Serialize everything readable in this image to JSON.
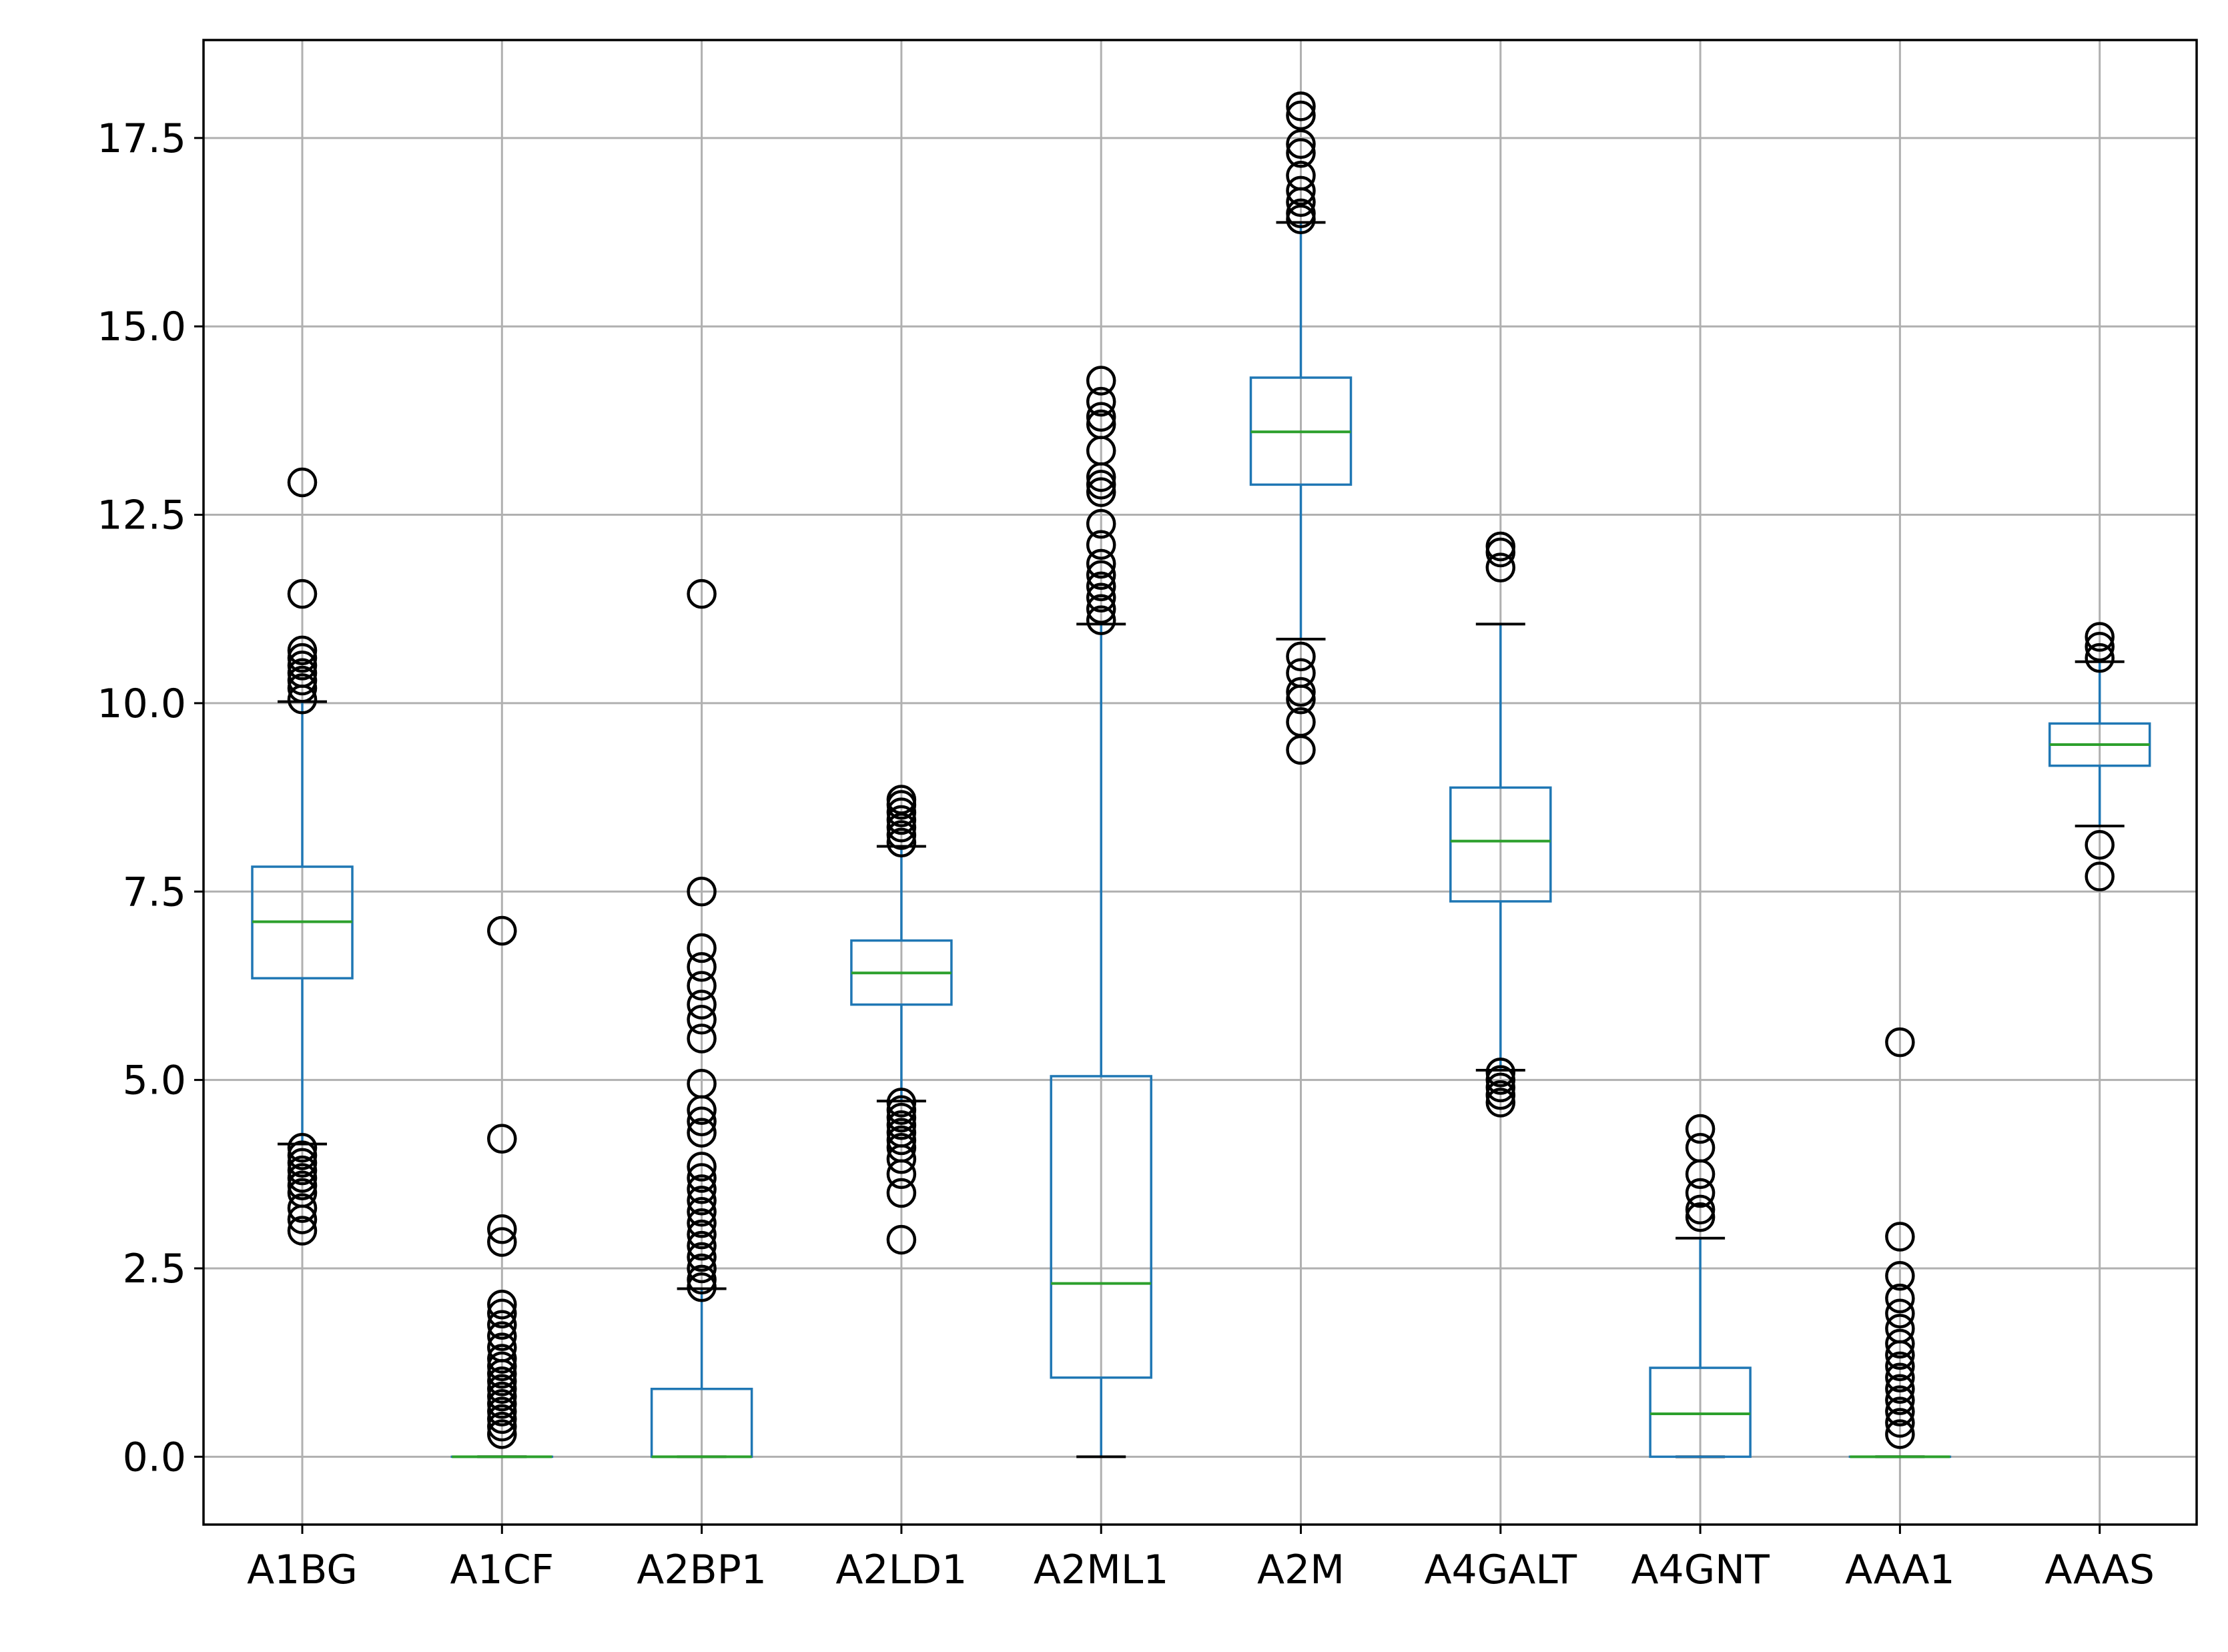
{
  "chart_data": {
    "type": "box",
    "title": "",
    "xlabel": "",
    "ylabel": "",
    "ylim": [
      -0.9,
      18.8
    ],
    "yticks": [
      0.0,
      2.5,
      5.0,
      7.5,
      10.0,
      12.5,
      15.0,
      17.5
    ],
    "ytick_labels": [
      "0.0",
      "2.5",
      "5.0",
      "7.5",
      "10.0",
      "12.5",
      "15.0",
      "17.5"
    ],
    "grid": true,
    "colors": {
      "box": "#1f77b4",
      "median": "#2ca02c",
      "cap": "#000000",
      "flier": "#000000",
      "grid": "#b0b0b0"
    },
    "categories": [
      "A1BG",
      "A1CF",
      "A2BP1",
      "A2LD1",
      "A2ML1",
      "A2M",
      "A4GALT",
      "A4GNT",
      "AAA1",
      "AAAS"
    ],
    "series": [
      {
        "label": "A1BG",
        "q1": 6.35,
        "median": 7.1,
        "q3": 7.83,
        "whislo": 4.15,
        "whishi": 10.02,
        "fliers": [
          12.93,
          11.45,
          10.7,
          10.6,
          10.5,
          10.4,
          10.3,
          10.2,
          10.05,
          4.1,
          4.0,
          3.9,
          3.8,
          3.7,
          3.6,
          3.5,
          3.3,
          3.15,
          3.0
        ]
      },
      {
        "label": "A1CF",
        "q1": 0.0,
        "median": 0.0,
        "q3": 0.0,
        "whislo": 0.0,
        "whishi": 0.0,
        "fliers": [
          6.98,
          4.22,
          3.02,
          2.85,
          2.02,
          1.9,
          1.75,
          1.6,
          1.45,
          1.3,
          1.2,
          1.1,
          1.0,
          0.9,
          0.8,
          0.7,
          0.6,
          0.5,
          0.4,
          0.3
        ]
      },
      {
        "label": "A2BP1",
        "q1": 0.0,
        "median": 0.0,
        "q3": 0.9,
        "whislo": 0.0,
        "whishi": 2.23,
        "fliers": [
          11.45,
          7.5,
          6.75,
          6.5,
          6.25,
          6.0,
          5.8,
          5.55,
          4.95,
          4.6,
          4.45,
          4.3,
          3.85,
          3.7,
          3.55,
          3.4,
          3.25,
          3.1,
          2.95,
          2.8,
          2.65,
          2.5,
          2.35,
          2.25
        ]
      },
      {
        "label": "A2LD1",
        "q1": 6.0,
        "median": 6.42,
        "q3": 6.85,
        "whislo": 4.72,
        "whishi": 8.1,
        "fliers": [
          8.72,
          8.65,
          8.55,
          8.45,
          8.35,
          8.25,
          8.15,
          4.7,
          4.6,
          4.5,
          4.4,
          4.3,
          4.2,
          4.1,
          3.95,
          3.75,
          3.5,
          2.88
        ]
      },
      {
        "label": "A2ML1",
        "q1": 1.05,
        "median": 2.3,
        "q3": 5.05,
        "whislo": 0.0,
        "whishi": 11.05,
        "fliers": [
          14.28,
          14.0,
          13.8,
          13.7,
          13.35,
          13.0,
          12.9,
          12.8,
          12.38,
          12.1,
          11.85,
          11.7,
          11.55,
          11.4,
          11.25,
          11.1
        ]
      },
      {
        "label": "A2M",
        "q1": 12.9,
        "median": 13.6,
        "q3": 14.32,
        "whislo": 10.85,
        "whishi": 16.38,
        "fliers": [
          17.92,
          17.8,
          17.42,
          17.3,
          17.0,
          16.8,
          16.65,
          16.5,
          16.42,
          10.62,
          10.4,
          10.15,
          10.05,
          9.75,
          9.38
        ]
      },
      {
        "label": "A4GALT",
        "q1": 7.37,
        "median": 8.17,
        "q3": 8.88,
        "whislo": 5.13,
        "whishi": 11.05,
        "fliers": [
          12.08,
          12.0,
          11.8,
          5.1,
          5.0,
          4.9,
          4.8,
          4.7
        ]
      },
      {
        "label": "A4GNT",
        "q1": 0.0,
        "median": 0.57,
        "q3": 1.18,
        "whislo": 0.0,
        "whishi": 2.9,
        "fliers": [
          4.35,
          4.1,
          3.75,
          3.5,
          3.28,
          3.18
        ]
      },
      {
        "label": "AAA1",
        "q1": 0.0,
        "median": 0.0,
        "q3": 0.0,
        "whislo": 0.0,
        "whishi": 0.0,
        "fliers": [
          5.5,
          2.92,
          2.4,
          2.1,
          1.9,
          1.7,
          1.5,
          1.35,
          1.2,
          1.05,
          0.9,
          0.75,
          0.6,
          0.45,
          0.3
        ]
      },
      {
        "label": "AAAS",
        "q1": 9.17,
        "median": 9.45,
        "q3": 9.73,
        "whislo": 8.37,
        "whishi": 10.55,
        "fliers": [
          10.88,
          10.75,
          10.6,
          8.12,
          7.7
        ]
      }
    ]
  }
}
